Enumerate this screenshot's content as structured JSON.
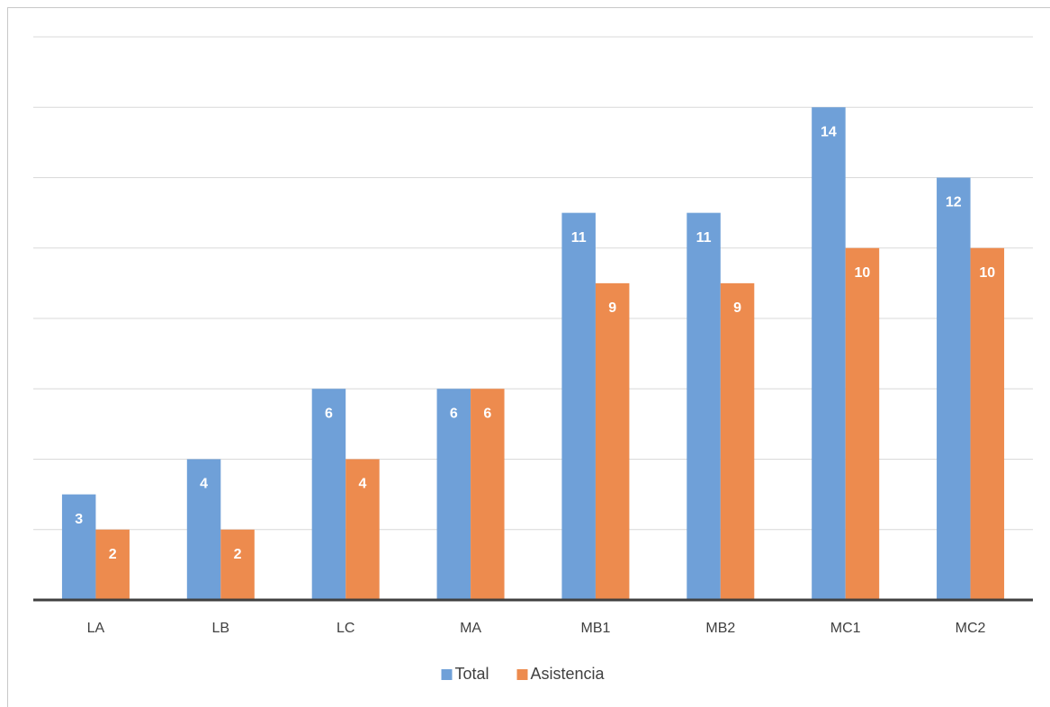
{
  "chart_data": {
    "type": "bar",
    "categories": [
      "LA",
      "LB",
      "LC",
      "MA",
      "MB1",
      "MB2",
      "MC1",
      "MC2"
    ],
    "series": [
      {
        "name": "Total",
        "color": "#6fa0d8",
        "values": [
          3,
          4,
          6,
          6,
          11,
          11,
          14,
          12
        ]
      },
      {
        "name": "Asistencia",
        "color": "#ed8b4e",
        "values": [
          2,
          2,
          4,
          6,
          9,
          9,
          10,
          10
        ]
      }
    ],
    "ylim": [
      0,
      16
    ],
    "yticks": [
      0,
      2,
      4,
      6,
      8,
      10,
      12,
      14,
      16
    ],
    "grid": true,
    "legend": "bottom"
  }
}
